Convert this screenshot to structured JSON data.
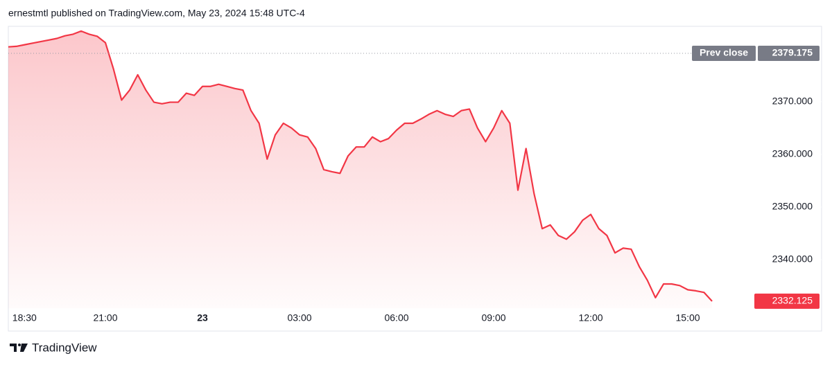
{
  "header": {
    "text": "ernestmtl published on TradingView.com, May 23, 2024 15:48 UTC-4"
  },
  "chart_data": {
    "type": "area",
    "x": [
      "18:00",
      "18:15",
      "18:30",
      "18:45",
      "19:00",
      "19:15",
      "19:30",
      "19:45",
      "20:00",
      "20:15",
      "20:30",
      "20:45",
      "21:00",
      "21:15",
      "21:30",
      "21:45",
      "22:00",
      "22:15",
      "22:30",
      "22:45",
      "23:00",
      "23:15",
      "23:30",
      "23:45",
      "00:00",
      "00:15",
      "00:30",
      "00:45",
      "01:00",
      "01:15",
      "01:30",
      "01:45",
      "02:00",
      "02:15",
      "02:30",
      "02:45",
      "03:00",
      "03:15",
      "03:30",
      "03:45",
      "04:00",
      "04:15",
      "04:30",
      "04:45",
      "05:00",
      "05:15",
      "05:30",
      "05:45",
      "06:00",
      "06:15",
      "06:30",
      "06:45",
      "07:00",
      "07:15",
      "07:30",
      "07:45",
      "08:00",
      "08:15",
      "08:30",
      "08:45",
      "09:00",
      "09:15",
      "09:30",
      "09:45",
      "10:00",
      "10:15",
      "10:30",
      "10:45",
      "11:00",
      "11:15",
      "11:30",
      "11:45",
      "12:00",
      "12:15",
      "12:30",
      "12:45",
      "13:00",
      "13:15",
      "13:30",
      "13:45",
      "14:00",
      "14:15",
      "14:30",
      "14:45",
      "15:00",
      "15:15",
      "15:30",
      "15:45"
    ],
    "values": [
      2380.4,
      2380.5,
      2380.8,
      2381.1,
      2381.4,
      2381.7,
      2382.0,
      2382.5,
      2382.8,
      2383.4,
      2382.8,
      2382.4,
      2381.2,
      2376.2,
      2370.3,
      2372.2,
      2375.1,
      2372.2,
      2369.9,
      2369.6,
      2369.9,
      2369.9,
      2371.6,
      2371.2,
      2372.9,
      2372.9,
      2373.3,
      2372.9,
      2372.5,
      2372.2,
      2368.3,
      2365.9,
      2359.1,
      2363.7,
      2365.9,
      2365.0,
      2363.7,
      2363.3,
      2361.1,
      2357.1,
      2356.7,
      2356.4,
      2359.7,
      2361.4,
      2361.4,
      2363.3,
      2362.4,
      2363.0,
      2364.6,
      2365.9,
      2365.9,
      2366.7,
      2367.6,
      2368.3,
      2367.6,
      2367.2,
      2368.3,
      2368.6,
      2365.0,
      2362.4,
      2365.0,
      2368.3,
      2365.9,
      2353.2,
      2361.1,
      2352.5,
      2345.9,
      2346.6,
      2344.6,
      2343.9,
      2345.3,
      2347.5,
      2348.6,
      2345.9,
      2344.6,
      2341.3,
      2342.2,
      2342.0,
      2338.7,
      2336.1,
      2332.8,
      2335.4,
      2335.4,
      2335.1,
      2334.3,
      2334.1,
      2333.8,
      2332.125
    ],
    "color": "#f23645",
    "prev_close": {
      "label": "Prev close",
      "value": 2379.175
    },
    "ylim": [
      2330.8,
      2384.3
    ],
    "yticks": [
      {
        "value": 2340,
        "label": "2340.000"
      },
      {
        "value": 2350,
        "label": "2350.000"
      },
      {
        "value": 2360,
        "label": "2360.000"
      },
      {
        "value": 2370,
        "label": "2370.000"
      }
    ],
    "xticks": [
      "18:30",
      "21:00",
      {
        "value": "00:00",
        "label": "23"
      },
      "03:00",
      "06:00",
      "09:00",
      "12:00",
      "15:00"
    ]
  },
  "footer": {
    "brand": "TradingView"
  }
}
